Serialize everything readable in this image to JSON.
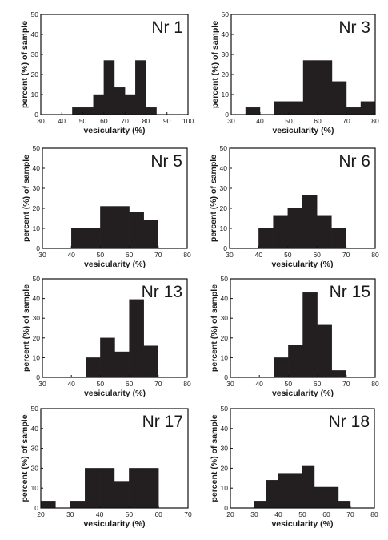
{
  "chart_data": [
    {
      "title": "Nr 1",
      "type": "bar",
      "xlabel": "vesicularity (%)",
      "ylabel": "percent (%) of sample",
      "xlim": [
        30,
        100
      ],
      "ylim": [
        0,
        50
      ],
      "xticks": [
        30,
        40,
        50,
        60,
        70,
        80,
        90,
        100
      ],
      "yticks": [
        0,
        10,
        20,
        30,
        40,
        50
      ],
      "bins": [
        [
          45,
          50,
          3.5
        ],
        [
          50,
          55,
          3.5
        ],
        [
          55,
          60,
          10
        ],
        [
          60,
          65,
          27
        ],
        [
          65,
          70,
          13.5
        ],
        [
          70,
          75,
          10
        ],
        [
          75,
          80,
          27
        ],
        [
          80,
          85,
          3.5
        ]
      ]
    },
    {
      "title": "Nr 3",
      "type": "bar",
      "xlabel": "vesicularity (%)",
      "ylabel": "percent (%) of sample",
      "xlim": [
        30,
        80
      ],
      "ylim": [
        0,
        50
      ],
      "xticks": [
        30,
        40,
        50,
        60,
        70,
        80
      ],
      "yticks": [
        0,
        10,
        20,
        30,
        40,
        50
      ],
      "bins": [
        [
          35,
          40,
          3.5
        ],
        [
          45,
          50,
          6.5
        ],
        [
          50,
          55,
          6.5
        ],
        [
          55,
          60,
          27
        ],
        [
          60,
          65,
          27
        ],
        [
          65,
          70,
          16.5
        ],
        [
          70,
          75,
          3.5
        ],
        [
          75,
          80,
          6.5
        ]
      ]
    },
    {
      "title": "Nr 5",
      "type": "bar",
      "xlabel": "vesicularity (%)",
      "ylabel": "percent (%) of sample",
      "xlim": [
        30,
        80
      ],
      "ylim": [
        0,
        50
      ],
      "xticks": [
        30,
        40,
        50,
        60,
        70,
        80
      ],
      "yticks": [
        0,
        10,
        20,
        30,
        40,
        50
      ],
      "bins": [
        [
          40,
          45,
          10
        ],
        [
          45,
          50,
          10
        ],
        [
          50,
          55,
          21
        ],
        [
          55,
          60,
          21
        ],
        [
          60,
          65,
          18
        ],
        [
          65,
          70,
          14
        ]
      ]
    },
    {
      "title": "Nr 6",
      "type": "bar",
      "xlabel": "vesicularity (%)",
      "ylabel": "percent (%) of sample",
      "xlim": [
        30,
        80
      ],
      "ylim": [
        0,
        50
      ],
      "xticks": [
        30,
        40,
        50,
        60,
        70,
        80
      ],
      "yticks": [
        0,
        10,
        20,
        30,
        40,
        50
      ],
      "bins": [
        [
          40,
          45,
          10
        ],
        [
          45,
          50,
          16.5
        ],
        [
          50,
          55,
          20
        ],
        [
          55,
          60,
          26.5
        ],
        [
          60,
          65,
          16.5
        ],
        [
          65,
          70,
          10
        ]
      ]
    },
    {
      "title": "Nr 13",
      "type": "bar",
      "xlabel": "vesicularity (%)",
      "ylabel": "percent (%) of sample",
      "xlim": [
        30,
        80
      ],
      "ylim": [
        0,
        50
      ],
      "xticks": [
        30,
        40,
        50,
        60,
        70,
        80
      ],
      "yticks": [
        0,
        10,
        20,
        30,
        40,
        50
      ],
      "bins": [
        [
          45,
          50,
          10
        ],
        [
          50,
          55,
          20
        ],
        [
          55,
          60,
          13
        ],
        [
          60,
          65,
          39.5
        ],
        [
          65,
          70,
          16
        ]
      ]
    },
    {
      "title": "Nr 15",
      "type": "bar",
      "xlabel": "vesicularity (%)",
      "ylabel": "percent (%) of sample",
      "xlim": [
        30,
        80
      ],
      "ylim": [
        0,
        50
      ],
      "xticks": [
        30,
        40,
        50,
        60,
        70,
        80
      ],
      "yticks": [
        0,
        10,
        20,
        30,
        40,
        50
      ],
      "bins": [
        [
          45,
          50,
          10
        ],
        [
          50,
          55,
          16.5
        ],
        [
          55,
          60,
          43
        ],
        [
          60,
          65,
          26.5
        ],
        [
          65,
          70,
          3.5
        ]
      ]
    },
    {
      "title": "Nr 17",
      "type": "bar",
      "xlabel": "vesicularity (%)",
      "ylabel": "percent (%) of sample",
      "xlim": [
        20,
        70
      ],
      "ylim": [
        0,
        50
      ],
      "xticks": [
        20,
        30,
        40,
        50,
        60,
        70
      ],
      "yticks": [
        0,
        10,
        20,
        30,
        40,
        50
      ],
      "bins": [
        [
          20,
          25,
          3.5
        ],
        [
          30,
          35,
          3.5
        ],
        [
          35,
          40,
          20
        ],
        [
          40,
          45,
          20
        ],
        [
          45,
          50,
          13.5
        ],
        [
          50,
          55,
          20
        ],
        [
          55,
          60,
          20
        ]
      ]
    },
    {
      "title": "Nr 18",
      "type": "bar",
      "xlabel": "vesicularity (%)",
      "ylabel": "percent (%) of sample",
      "xlim": [
        20,
        80
      ],
      "ylim": [
        0,
        50
      ],
      "xticks": [
        20,
        30,
        40,
        50,
        60,
        70,
        80
      ],
      "yticks": [
        0,
        10,
        20,
        30,
        40,
        50
      ],
      "bins": [
        [
          30,
          35,
          3.5
        ],
        [
          35,
          40,
          14
        ],
        [
          40,
          45,
          17.5
        ],
        [
          45,
          50,
          17.5
        ],
        [
          50,
          55,
          21
        ],
        [
          55,
          60,
          10.5
        ],
        [
          60,
          65,
          10.5
        ],
        [
          65,
          70,
          3.5
        ]
      ]
    }
  ]
}
